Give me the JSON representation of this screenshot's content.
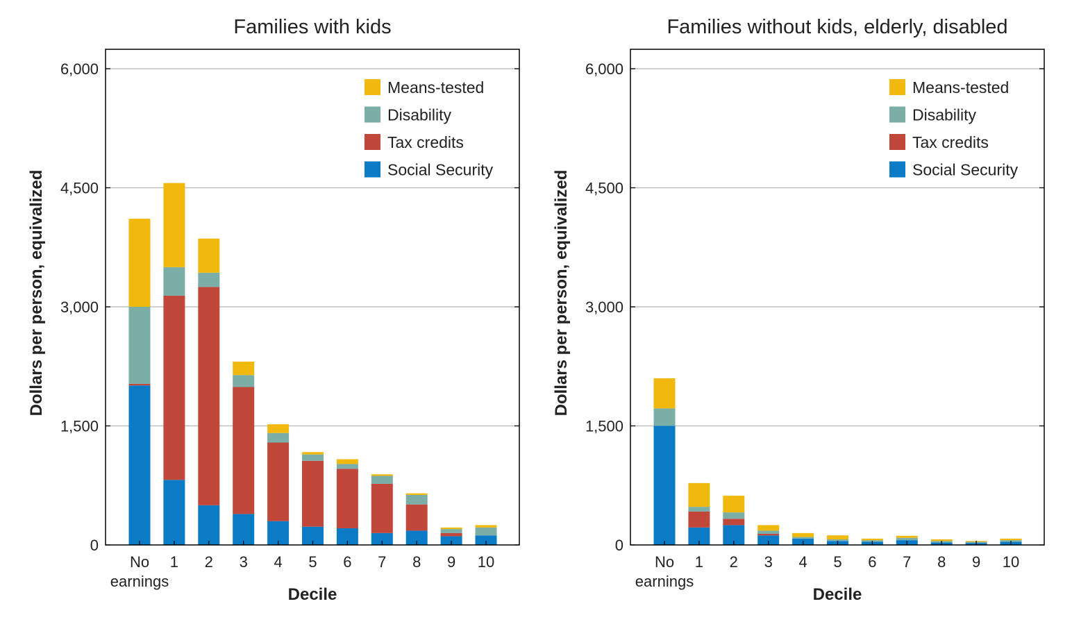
{
  "chart_data": [
    {
      "type": "bar",
      "stacked": true,
      "title": "Families with kids",
      "xlabel": "Decile",
      "ylabel": "Dollars per person, equivalized",
      "categories": [
        "No\nearnings",
        "1",
        "2",
        "3",
        "4",
        "5",
        "6",
        "7",
        "8",
        "9",
        "10"
      ],
      "ylim": [
        0,
        6000
      ],
      "yticks": [
        "0",
        "1,500",
        "3,000",
        "4,500",
        "6,000"
      ],
      "ytick_values": [
        0,
        1500,
        3000,
        4500,
        6000
      ],
      "grid": true,
      "legend_position": "top-right",
      "series": [
        {
          "name": "Social Security",
          "color": "#0a7bc4",
          "values": [
            2010,
            820,
            500,
            390,
            300,
            230,
            210,
            150,
            180,
            110,
            120
          ]
        },
        {
          "name": "Tax credits",
          "color": "#c1473a",
          "values": [
            20,
            2320,
            2750,
            1600,
            990,
            830,
            750,
            620,
            330,
            40,
            0
          ]
        },
        {
          "name": "Disability",
          "color": "#7baea7",
          "values": [
            970,
            360,
            180,
            150,
            120,
            80,
            60,
            100,
            120,
            50,
            100
          ]
        },
        {
          "name": "Means-tested",
          "color": "#f1b80e",
          "values": [
            1110,
            1060,
            430,
            170,
            110,
            30,
            60,
            20,
            20,
            20,
            30
          ]
        }
      ]
    },
    {
      "type": "bar",
      "stacked": true,
      "title": "Families without kids, elderly, disabled",
      "xlabel": "Decile",
      "ylabel": "Dollars per person, equivalized",
      "categories": [
        "No\nearnings",
        "1",
        "2",
        "3",
        "4",
        "5",
        "6",
        "7",
        "8",
        "9",
        "10"
      ],
      "ylim": [
        0,
        6000
      ],
      "yticks": [
        "0",
        "1,500",
        "3,000",
        "4,500",
        "6,000"
      ],
      "ytick_values": [
        0,
        1500,
        3000,
        4500,
        6000
      ],
      "grid": true,
      "legend_position": "top-right",
      "series": [
        {
          "name": "Social Security",
          "color": "#0a7bc4",
          "values": [
            1500,
            220,
            250,
            120,
            80,
            50,
            40,
            60,
            30,
            25,
            40
          ]
        },
        {
          "name": "Tax credits",
          "color": "#c1473a",
          "values": [
            0,
            200,
            80,
            20,
            0,
            0,
            0,
            0,
            0,
            0,
            0
          ]
        },
        {
          "name": "Disability",
          "color": "#7baea7",
          "values": [
            220,
            60,
            80,
            40,
            20,
            20,
            20,
            30,
            20,
            15,
            20
          ]
        },
        {
          "name": "Means-tested",
          "color": "#f1b80e",
          "values": [
            380,
            300,
            210,
            70,
            50,
            50,
            20,
            25,
            20,
            10,
            20
          ]
        }
      ]
    }
  ]
}
